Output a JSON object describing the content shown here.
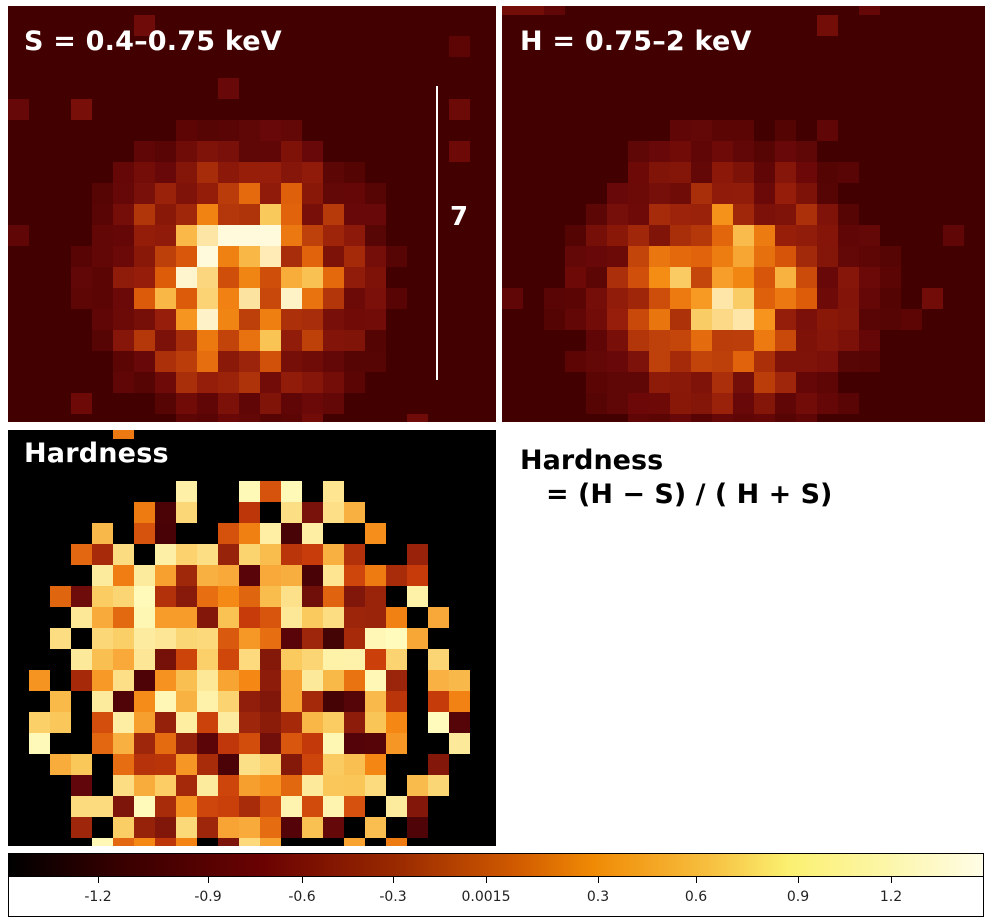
{
  "panels": {
    "soft": {
      "label": "S = 0.4–0.75 keV"
    },
    "hard": {
      "label": "H = 0.75–2 keV"
    },
    "hardness": {
      "label": "Hardness"
    }
  },
  "scale_bar": {
    "label": "7"
  },
  "formula": {
    "line1": "Hardness",
    "line2": "= (H − S) / ( H + S)"
  },
  "colorbar": {
    "ticks": [
      "-1.2",
      "-0.9",
      "-0.6",
      "-0.3",
      "0.0015",
      "0.3",
      "0.6",
      "0.9",
      "1.2"
    ]
  }
}
